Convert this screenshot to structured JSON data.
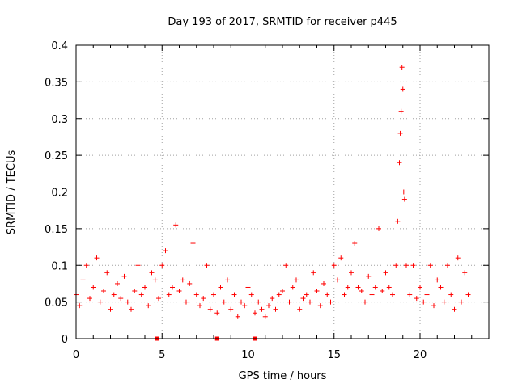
{
  "chart_data": {
    "type": "scatter",
    "title": "Day 193 of 2017, SRMTID for receiver p445",
    "xlabel": "GPS time / hours",
    "ylabel": "SRMTID / TECUs",
    "xlim": [
      0,
      24
    ],
    "ylim": [
      0,
      0.4
    ],
    "x_ticks": [
      0,
      5,
      10,
      15,
      20
    ],
    "x_tick_labels": [
      "0",
      "5",
      "10",
      "15",
      "20"
    ],
    "y_ticks": [
      0,
      0.05,
      0.1,
      0.15,
      0.2,
      0.25,
      0.3,
      0.35,
      0.4
    ],
    "y_tick_labels": [
      "0",
      "0.05",
      "0.1",
      "0.15",
      "0.2",
      "0.25",
      "0.3",
      "0.35",
      "0.4"
    ],
    "grid": true,
    "marker": "+",
    "color": "#ff0000",
    "zero_markers_x": [
      4.7,
      8.2,
      10.4
    ],
    "series": [
      {
        "name": "SRMTID",
        "x": [
          0.0,
          0.2,
          0.4,
          0.6,
          0.8,
          1.0,
          1.2,
          1.4,
          1.6,
          1.8,
          2.0,
          2.2,
          2.4,
          2.6,
          2.8,
          3.0,
          3.2,
          3.4,
          3.6,
          3.8,
          4.0,
          4.2,
          4.4,
          4.6,
          4.8,
          5.0,
          5.2,
          5.4,
          5.6,
          5.8,
          6.0,
          6.2,
          6.4,
          6.6,
          6.8,
          7.0,
          7.2,
          7.4,
          7.6,
          7.8,
          8.0,
          8.2,
          8.4,
          8.6,
          8.8,
          9.0,
          9.2,
          9.4,
          9.6,
          9.8,
          10.0,
          10.2,
          10.4,
          10.6,
          10.8,
          11.0,
          11.2,
          11.4,
          11.6,
          11.8,
          12.0,
          12.2,
          12.4,
          12.6,
          12.8,
          13.0,
          13.2,
          13.4,
          13.6,
          13.8,
          14.0,
          14.2,
          14.4,
          14.6,
          14.8,
          15.0,
          15.2,
          15.4,
          15.6,
          15.8,
          16.0,
          16.2,
          16.4,
          16.6,
          16.8,
          17.0,
          17.2,
          17.4,
          17.6,
          17.8,
          18.0,
          18.2,
          18.4,
          18.6,
          18.7,
          18.8,
          18.85,
          18.9,
          18.95,
          19.0,
          19.05,
          19.1,
          19.2,
          19.4,
          19.6,
          19.8,
          20.0,
          20.2,
          20.4,
          20.6,
          20.8,
          21.0,
          21.2,
          21.4,
          21.6,
          21.8,
          22.0,
          22.2,
          22.4,
          22.6,
          22.8
        ],
        "y": [
          0.06,
          0.045,
          0.08,
          0.1,
          0.055,
          0.07,
          0.11,
          0.05,
          0.065,
          0.09,
          0.04,
          0.06,
          0.075,
          0.055,
          0.085,
          0.05,
          0.04,
          0.065,
          0.1,
          0.06,
          0.07,
          0.045,
          0.09,
          0.08,
          0.055,
          0.1,
          0.12,
          0.06,
          0.07,
          0.155,
          0.065,
          0.08,
          0.05,
          0.075,
          0.13,
          0.06,
          0.045,
          0.055,
          0.1,
          0.04,
          0.06,
          0.035,
          0.07,
          0.05,
          0.08,
          0.04,
          0.06,
          0.03,
          0.05,
          0.045,
          0.07,
          0.06,
          0.035,
          0.05,
          0.04,
          0.03,
          0.045,
          0.055,
          0.04,
          0.06,
          0.065,
          0.1,
          0.05,
          0.07,
          0.08,
          0.04,
          0.055,
          0.06,
          0.05,
          0.09,
          0.065,
          0.045,
          0.075,
          0.06,
          0.05,
          0.1,
          0.08,
          0.11,
          0.06,
          0.07,
          0.09,
          0.13,
          0.07,
          0.065,
          0.05,
          0.085,
          0.06,
          0.07,
          0.15,
          0.065,
          0.09,
          0.07,
          0.06,
          0.1,
          0.16,
          0.24,
          0.28,
          0.31,
          0.37,
          0.34,
          0.2,
          0.19,
          0.1,
          0.06,
          0.1,
          0.055,
          0.07,
          0.05,
          0.06,
          0.1,
          0.045,
          0.08,
          0.07,
          0.05,
          0.1,
          0.06,
          0.04,
          0.11,
          0.05,
          0.09,
          0.06
        ]
      }
    ]
  }
}
